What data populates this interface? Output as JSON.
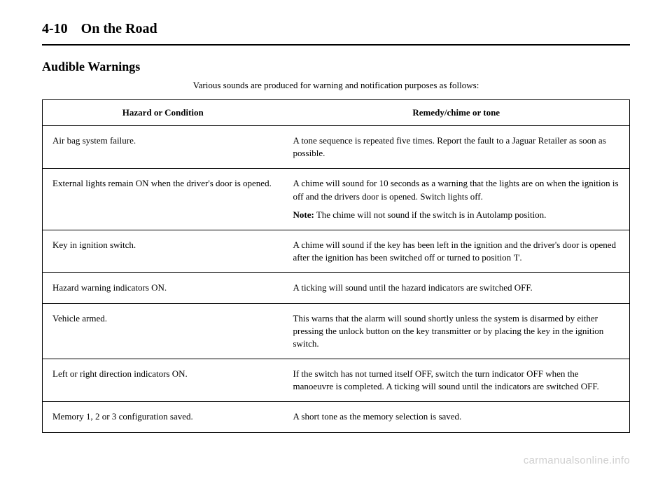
{
  "header": {
    "page_number": "4-10",
    "chapter_title": "On the Road"
  },
  "section": {
    "heading": "Audible Warnings",
    "intro": "Various sounds are produced for warning and notification purposes as follows:"
  },
  "table": {
    "columns": {
      "hazard": "Hazard or Condition",
      "remedy": "Remedy/chime or tone"
    },
    "rows": [
      {
        "hazard": "Air bag system failure.",
        "remedy": "A tone sequence is repeated five times. Report the fault to a Jaguar Retailer as soon as possible.",
        "note": null
      },
      {
        "hazard": "External lights remain ON when the driver's door is opened.",
        "remedy": "A chime will sound for 10 seconds as a warning that the lights are on when the ignition is off and the drivers door is opened. Switch lights off.",
        "note_label": "Note:",
        "note": " The chime will not sound if the switch is in Autolamp position."
      },
      {
        "hazard": "Key in ignition switch.",
        "remedy": "A chime will sound if the key has been left in the ignition and the driver's door is opened after the ignition has been switched off or turned to position 'I'.",
        "note": null
      },
      {
        "hazard": "Hazard warning indicators ON.",
        "remedy": "A ticking will sound until the hazard indicators are switched OFF.",
        "note": null
      },
      {
        "hazard": "Vehicle armed.",
        "remedy": "This warns that the alarm will sound shortly unless the system is disarmed by either pressing the unlock button on the key transmitter or by placing the key in the ignition switch.",
        "note": null
      },
      {
        "hazard": "Left or right direction indicators ON.",
        "remedy": "If the switch has not turned itself OFF, switch the turn indicator OFF when the manoeuvre is completed. A ticking will sound until the indicators are switched OFF.",
        "note": null
      },
      {
        "hazard": "Memory 1, 2 or 3 configuration saved.",
        "remedy": "A short tone as the memory selection is saved.",
        "note": null
      }
    ]
  },
  "watermark": "carmanualsonline.info"
}
